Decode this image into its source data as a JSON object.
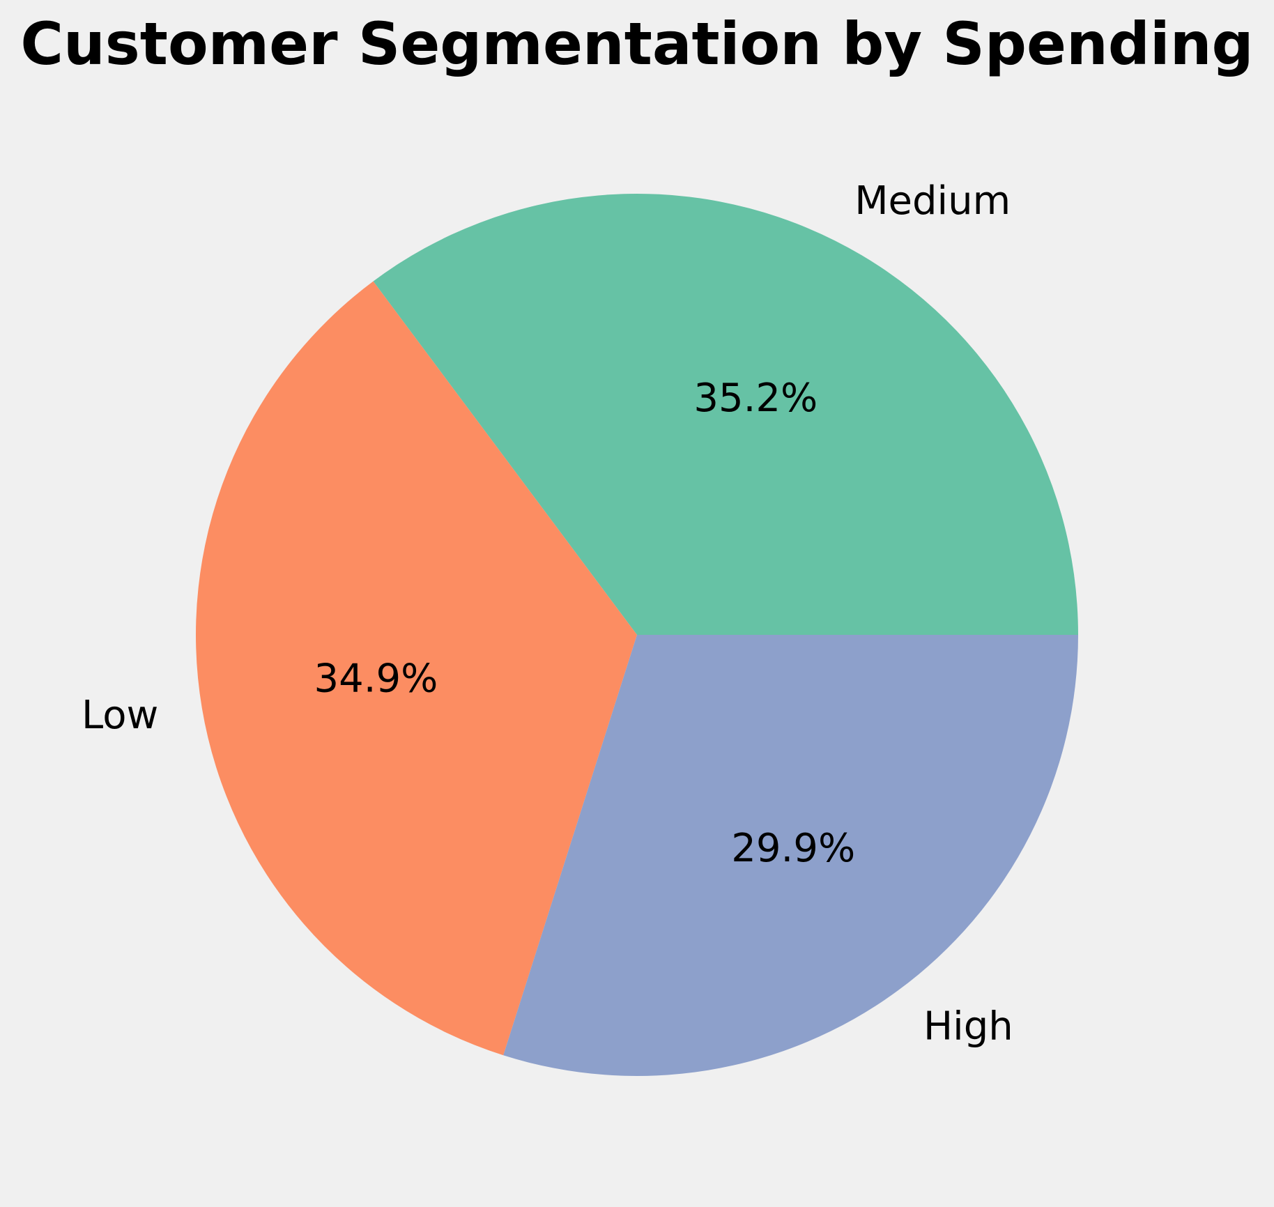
{
  "chart_data": {
    "type": "pie",
    "title": "Customer Segmentation by Spending",
    "categories": [
      "Medium",
      "Low",
      "High"
    ],
    "values": [
      35.2,
      34.9,
      29.9
    ],
    "value_labels": [
      "35.2%",
      "34.9%",
      "29.9%"
    ],
    "colors": [
      "#66c2a5",
      "#fc8d62",
      "#8da0cb"
    ],
    "start_angle_deg": 0,
    "direction": "counterclockwise",
    "legend": "none"
  },
  "background_color": "#f0f0f0"
}
